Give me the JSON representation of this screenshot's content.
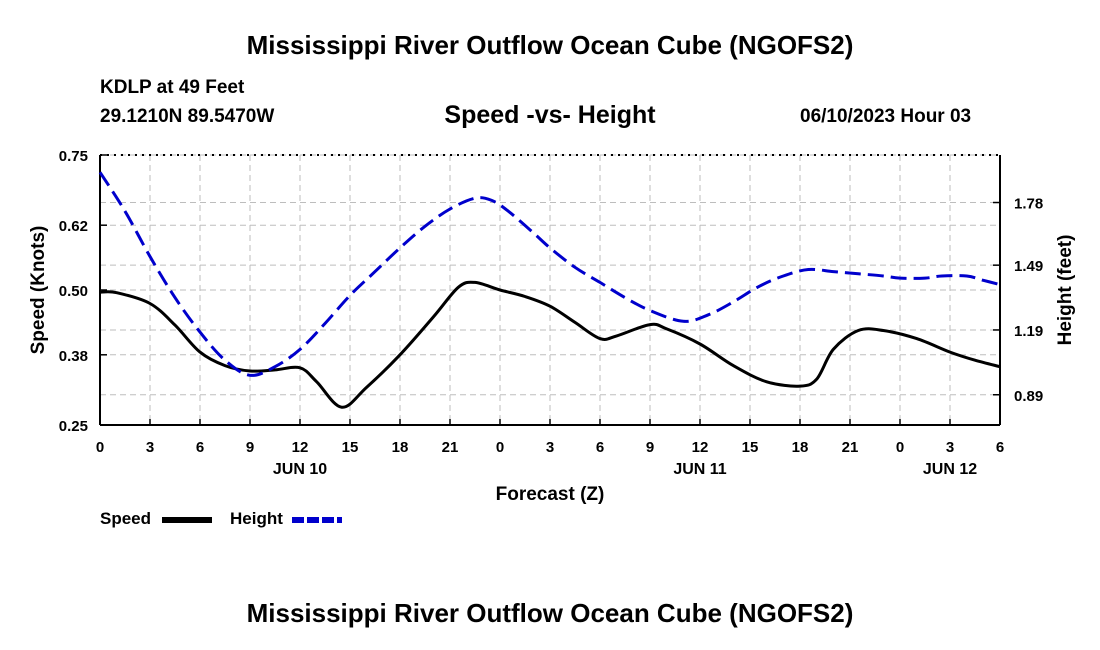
{
  "page": {
    "title_top": "Mississippi River Outflow Ocean Cube (NGOFS2)",
    "title_bottom": "Mississippi River Outflow Ocean Cube (NGOFS2)",
    "station": "KDLP at 49 Feet",
    "coords": "29.1210N  89.5470W",
    "subtitle": "Speed -vs- Height",
    "datetime": "06/10/2023 Hour 03"
  },
  "chart_data": {
    "type": "line",
    "title": "Speed -vs- Height",
    "xlabel": "Forecast (Z)",
    "x_hours": [
      0,
      3,
      6,
      9,
      12,
      15,
      18,
      21,
      24,
      27,
      30,
      33,
      36,
      39,
      42,
      45,
      48,
      51,
      54
    ],
    "x_tick_labels": [
      "0",
      "3",
      "6",
      "9",
      "12",
      "15",
      "18",
      "21",
      "0",
      "3",
      "6",
      "9",
      "12",
      "15",
      "18",
      "21",
      "0",
      "3",
      "6"
    ],
    "date_labels": [
      {
        "label": "JUN 10",
        "hour": 12
      },
      {
        "label": "JUN 11",
        "hour": 36
      },
      {
        "label": "JUN 12",
        "hour": 51
      }
    ],
    "xlim": [
      0,
      54
    ],
    "left_axis": {
      "label": "Speed (Knots)",
      "ylim": [
        0.25,
        0.75
      ],
      "ticks": [
        0.25,
        0.38,
        0.5,
        0.62,
        0.75
      ],
      "tick_labels": [
        "0.25",
        "0.38",
        "0.50",
        "0.62",
        "0.75"
      ]
    },
    "right_axis": {
      "label": "Height (feet)",
      "ylim": [
        0.75,
        2.0
      ],
      "ticks": [
        0.89,
        1.19,
        1.49,
        1.78
      ],
      "tick_labels": [
        "0.89",
        "1.19",
        "1.49",
        "1.78"
      ]
    },
    "series": [
      {
        "name": "Speed",
        "axis": "left",
        "color": "#000000",
        "style": "solid",
        "x": [
          0,
          1,
          3,
          4.5,
          6,
          7.5,
          9,
          10.5,
          12,
          13,
          14.5,
          16,
          18,
          20,
          21.5,
          22.5,
          24,
          25.5,
          27,
          28.5,
          30,
          31,
          33,
          34,
          36,
          38,
          40,
          42,
          43,
          44,
          45.5,
          47,
          49,
          51,
          52.5,
          54
        ],
        "values": [
          0.496,
          0.495,
          0.475,
          0.435,
          0.385,
          0.36,
          0.35,
          0.352,
          0.356,
          0.33,
          0.283,
          0.32,
          0.38,
          0.45,
          0.505,
          0.514,
          0.5,
          0.488,
          0.47,
          0.44,
          0.41,
          0.415,
          0.436,
          0.428,
          0.4,
          0.36,
          0.33,
          0.322,
          0.335,
          0.39,
          0.425,
          0.425,
          0.41,
          0.385,
          0.37,
          0.358
        ]
      },
      {
        "name": "Height",
        "axis": "right",
        "color": "#0000cc",
        "style": "dashed",
        "x": [
          0,
          1.5,
          3,
          4.5,
          6,
          7.5,
          9,
          10.5,
          12,
          13.5,
          15,
          16.5,
          18,
          19.5,
          21,
          22.5,
          23.5,
          24.5,
          26,
          27,
          28.5,
          30,
          31.5,
          33,
          35,
          36.5,
          38,
          39.5,
          41,
          42.5,
          44,
          45.5,
          47,
          48,
          49.5,
          50.5,
          52,
          53,
          54
        ],
        "values": [
          1.92,
          1.74,
          1.53,
          1.34,
          1.18,
          1.05,
          0.98,
          1.02,
          1.1,
          1.22,
          1.35,
          1.46,
          1.57,
          1.67,
          1.75,
          1.8,
          1.79,
          1.74,
          1.64,
          1.57,
          1.48,
          1.41,
          1.34,
          1.28,
          1.23,
          1.26,
          1.32,
          1.39,
          1.44,
          1.47,
          1.46,
          1.45,
          1.44,
          1.43,
          1.43,
          1.44,
          1.44,
          1.42,
          1.4
        ]
      }
    ],
    "legend": [
      {
        "label": "Speed",
        "color": "#000000",
        "style": "solid"
      },
      {
        "label": "Height",
        "color": "#0000cc",
        "style": "dashed"
      }
    ],
    "legend_position": "bottom-left",
    "grid": true
  }
}
